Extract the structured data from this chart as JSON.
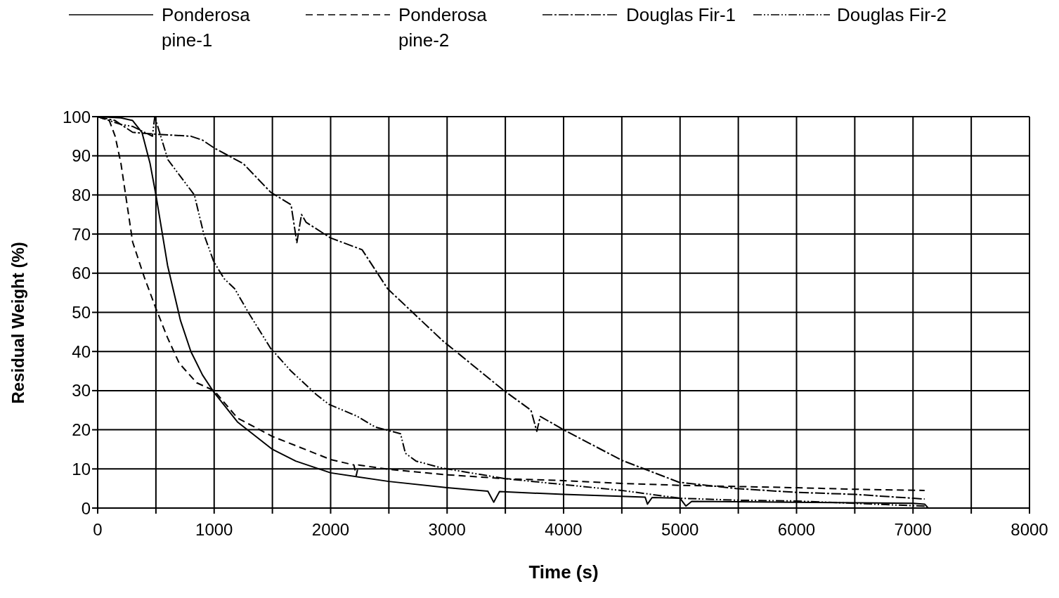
{
  "chart_data": {
    "type": "line",
    "xlabel": "Time (s)",
    "ylabel": "Residual Weight (%)",
    "xlim": [
      0,
      8000
    ],
    "ylim": [
      0,
      100
    ],
    "xticks": [
      0,
      {
        "value": 500,
        "label": null
      },
      1000,
      {
        "value": 1500,
        "label": null
      },
      2000,
      {
        "value": 2500,
        "label": null
      },
      3000,
      {
        "value": 3500,
        "label": null
      },
      4000,
      {
        "value": 4500,
        "label": null
      },
      5000,
      {
        "value": 5500,
        "label": null
      },
      6000,
      {
        "value": 6500,
        "label": null
      },
      7000,
      {
        "value": 7500,
        "label": null
      },
      8000
    ],
    "yticks": [
      0,
      10,
      20,
      30,
      40,
      50,
      60,
      70,
      80,
      90,
      100
    ],
    "grid": true,
    "legend": "top",
    "marker": "none",
    "series": [
      {
        "name": "Ponderosa pine-1",
        "color": "#000000",
        "line_style": "solid",
        "x": [
          0,
          200,
          300,
          380,
          450,
          500,
          600,
          710,
          800,
          900,
          1000,
          1200,
          1500,
          1700,
          2000,
          2500,
          3000,
          3350,
          3400,
          3450,
          4000,
          4490,
          4700,
          4720,
          4760,
          5000,
          5050,
          5100,
          6000,
          7000,
          7100,
          7130
        ],
        "values": [
          100,
          99.7,
          99,
          96,
          88,
          80,
          62,
          48,
          40,
          34,
          29.5,
          22,
          15,
          12,
          9,
          6.8,
          5.2,
          4.3,
          1.5,
          4.2,
          3.5,
          3,
          2.8,
          1,
          2.7,
          2.5,
          0.5,
          1.7,
          1.5,
          1.2,
          1,
          0
        ]
      },
      {
        "name": "Ponderosa pine-2",
        "color": "#000000",
        "line_style": "dashed",
        "x": [
          0,
          100,
          150,
          200,
          300,
          400,
          500,
          600,
          700,
          850,
          1000,
          1200,
          1500,
          2000,
          2200,
          2220,
          2240,
          2500,
          3000,
          3500,
          4000,
          4500,
          5000,
          5500,
          6000,
          6500,
          7100
        ],
        "values": [
          100,
          99,
          95,
          88,
          68,
          59,
          51,
          43.5,
          37,
          32,
          30,
          23,
          18.3,
          12.4,
          11,
          8.3,
          11,
          9.9,
          8.5,
          7.5,
          7,
          6.3,
          5.8,
          5.5,
          5.2,
          4.8,
          4.5
        ]
      },
      {
        "name": "Douglas Fir-1",
        "color": "#000000",
        "line_style": "dashdot",
        "x": [
          0,
          150,
          300,
          500,
          800,
          900,
          1000,
          1250,
          1485,
          1660,
          1710,
          1750,
          1790,
          2000,
          2270,
          2490,
          2960,
          3480,
          3720,
          3770,
          3800,
          4000,
          4500,
          4990,
          5480,
          6000,
          6500,
          7000,
          7100
        ],
        "values": [
          100,
          99,
          96,
          95.5,
          95,
          94,
          92,
          88,
          80.7,
          77.5,
          67.8,
          75,
          73,
          69,
          66,
          56,
          42.8,
          30.2,
          25,
          19.6,
          23.4,
          20,
          12.2,
          6.6,
          5,
          4,
          3.5,
          2.5,
          2.3
        ]
      },
      {
        "name": "Douglas Fir-2",
        "color": "#000000",
        "line_style": "dashdotdot",
        "x": [
          0,
          200,
          300,
          470,
          490,
          603,
          830,
          911,
          996,
          1086,
          1177,
          1303,
          1485,
          1660,
          1877,
          1985,
          2225,
          2383,
          2600,
          2642,
          2733,
          2960,
          3500,
          4000,
          4500,
          5000,
          5500,
          6000,
          6500,
          7000,
          7100
        ],
        "values": [
          100,
          98,
          97.5,
          95,
          100,
          89,
          80,
          70,
          63,
          58.6,
          56,
          49.5,
          40.8,
          35,
          29,
          26.5,
          23.5,
          20.7,
          19,
          14,
          12,
          10.2,
          7.5,
          6,
          4.5,
          2.5,
          2,
          1.8,
          1.2,
          0.6,
          0.5
        ]
      }
    ]
  }
}
